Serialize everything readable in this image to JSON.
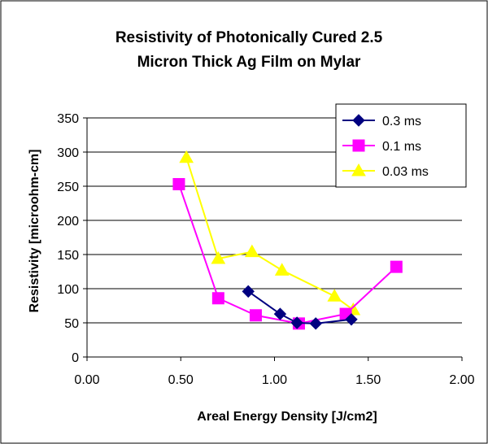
{
  "chart_data": {
    "type": "scatter",
    "title_lines": [
      "Resistivity of Photonically Cured  2.5",
      "Micron Thick Ag Film on Mylar"
    ],
    "xlabel": "Areal Energy Density [J/cm2]",
    "ylabel": "Resistivity [microohm-cm]",
    "xlim": [
      0,
      2
    ],
    "ylim": [
      0,
      350
    ],
    "xticks": [
      "0.00",
      "0.50",
      "1.00",
      "1.50",
      "2.00"
    ],
    "yticks": [
      "0",
      "50",
      "100",
      "150",
      "200",
      "250",
      "300",
      "350"
    ],
    "grid": "horizontal",
    "legend_position": "top-right",
    "series": [
      {
        "name": "0.3 ms",
        "color": "#000080",
        "marker": "diamond",
        "x": [
          0.86,
          1.03,
          1.12,
          1.22,
          1.41
        ],
        "y": [
          96,
          63,
          50,
          49,
          55
        ]
      },
      {
        "name": "0.1 ms",
        "color": "#ff00ff",
        "marker": "square",
        "x": [
          0.49,
          0.7,
          0.9,
          1.13,
          1.38,
          1.65
        ],
        "y": [
          253,
          86,
          61,
          49,
          63,
          132
        ]
      },
      {
        "name": "0.03 ms",
        "color": "#ffff00",
        "marker": "triangle",
        "x": [
          0.53,
          0.7,
          0.88,
          1.04,
          1.32,
          1.42
        ],
        "y": [
          292,
          144,
          154,
          127,
          89,
          69
        ]
      }
    ]
  }
}
